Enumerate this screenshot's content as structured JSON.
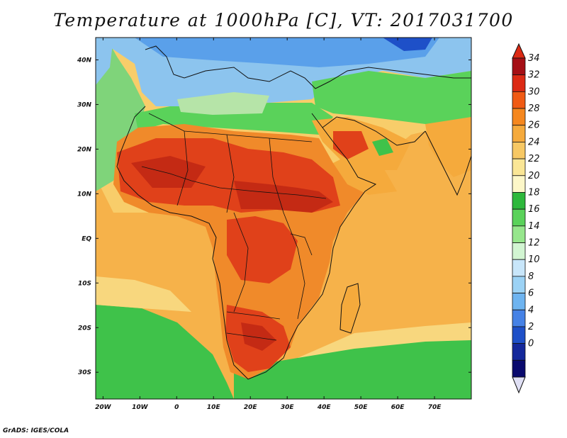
{
  "title": "Temperature at 1000hPa [C], VT: 2017031700",
  "credit": "GrADS: IGES/COLA",
  "map": {
    "lon_range": [
      -22,
      80
    ],
    "lat_range": [
      -36,
      45
    ],
    "lon_ticks": [
      {
        "value": -20,
        "label": "20W"
      },
      {
        "value": -10,
        "label": "10W"
      },
      {
        "value": 0,
        "label": "0"
      },
      {
        "value": 10,
        "label": "10E"
      },
      {
        "value": 20,
        "label": "20E"
      },
      {
        "value": 30,
        "label": "30E"
      },
      {
        "value": 40,
        "label": "40E"
      },
      {
        "value": 50,
        "label": "50E"
      },
      {
        "value": 60,
        "label": "60E"
      },
      {
        "value": 70,
        "label": "70E"
      }
    ],
    "lat_ticks": [
      {
        "value": 40,
        "label": "40N"
      },
      {
        "value": 30,
        "label": "30N"
      },
      {
        "value": 20,
        "label": "20N"
      },
      {
        "value": 10,
        "label": "10N"
      },
      {
        "value": 0,
        "label": "EQ"
      },
      {
        "value": -10,
        "label": "10S"
      },
      {
        "value": -20,
        "label": "20S"
      },
      {
        "value": -30,
        "label": "30S"
      }
    ]
  },
  "colorbar": {
    "labels": [
      "34",
      "32",
      "30",
      "28",
      "26",
      "24",
      "22",
      "20",
      "18",
      "16",
      "14",
      "12",
      "10",
      "8",
      "6",
      "4",
      "2",
      "0"
    ],
    "colors": [
      "#a50f15",
      "#dc2a14",
      "#f05a14",
      "#f5871e",
      "#f5aa3c",
      "#f7c864",
      "#fae696",
      "#fdf7c8",
      "#2eb83c",
      "#5ad25a",
      "#96e68c",
      "#d2f5d2",
      "#c8e6fa",
      "#9bd2f5",
      "#6eb4f0",
      "#4682e6",
      "#1e50c8",
      "#14289b",
      "#0a0a6e"
    ],
    "top_color": "#dc2a14",
    "bottom_color": "#e0e0f5"
  },
  "colors": {
    "ocean_warm": "#f6b24a",
    "ocean_mid": "#f8cd6a",
    "ocean_cool_green": "#3fc24a",
    "land_hot": "#e0411a",
    "land_warm": "#f08a2a",
    "desert_cool": "#8cc4ee",
    "med": "#3f86e3",
    "coast_lines": "#111111"
  }
}
